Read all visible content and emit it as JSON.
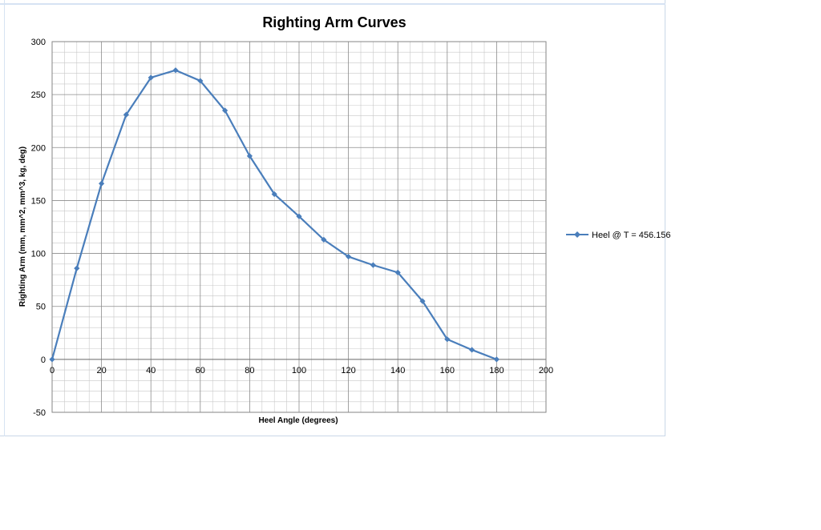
{
  "chart_data": {
    "type": "line",
    "title": "Righting Arm Curves",
    "xlabel": "Heel Angle (degrees)",
    "ylabel": "Righting Arm (mm, mm^2, mm^3, kg, deg)",
    "xlim": [
      0,
      200
    ],
    "ylim": [
      -50,
      300
    ],
    "x_ticks": [
      0,
      20,
      40,
      60,
      80,
      100,
      120,
      140,
      160,
      180,
      200
    ],
    "y_ticks": [
      -50,
      0,
      50,
      100,
      150,
      200,
      250,
      300
    ],
    "grid": true,
    "legend_position": "right",
    "series": [
      {
        "name": "Heel @ T = 456.156",
        "color": "#4a7ebb",
        "marker": "diamond",
        "x": [
          0,
          10,
          20,
          30,
          40,
          50,
          60,
          70,
          80,
          90,
          100,
          110,
          120,
          130,
          140,
          150,
          160,
          170,
          180
        ],
        "y": [
          0,
          86,
          166,
          231,
          266,
          273,
          263,
          235,
          192,
          156,
          135,
          113,
          97,
          89,
          82,
          55,
          19,
          9,
          0
        ]
      }
    ]
  }
}
